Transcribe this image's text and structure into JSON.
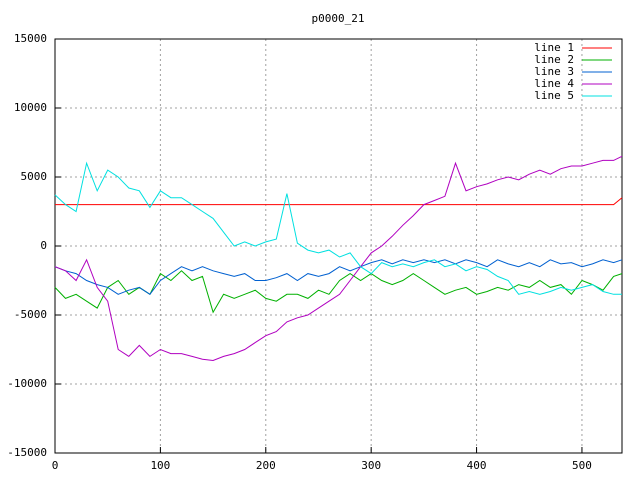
{
  "chart_data": {
    "type": "line",
    "title": "p0000_21",
    "x": [
      0,
      10,
      20,
      30,
      40,
      50,
      60,
      70,
      80,
      90,
      100,
      110,
      120,
      130,
      140,
      150,
      160,
      170,
      180,
      190,
      200,
      210,
      220,
      230,
      240,
      250,
      260,
      270,
      280,
      290,
      300,
      310,
      320,
      330,
      340,
      350,
      360,
      370,
      380,
      390,
      400,
      410,
      420,
      430,
      440,
      450,
      460,
      470,
      480,
      490,
      500,
      510,
      520,
      530,
      538
    ],
    "series": [
      {
        "name": "line 1",
        "color": "#ff0000",
        "values": [
          3000,
          3000,
          3000,
          3000,
          3000,
          3000,
          3000,
          3000,
          3000,
          3000,
          3000,
          3000,
          3000,
          3000,
          3000,
          3000,
          3000,
          3000,
          3000,
          3000,
          3000,
          3000,
          3000,
          3000,
          3000,
          3000,
          3000,
          3000,
          3000,
          3000,
          3000,
          3000,
          3000,
          3000,
          3000,
          3000,
          3000,
          3000,
          3000,
          3000,
          3000,
          3000,
          3000,
          3000,
          3000,
          3000,
          3000,
          3000,
          3000,
          3000,
          3000,
          3000,
          3000,
          3000,
          3500
        ]
      },
      {
        "name": "line 2",
        "color": "#00b000",
        "values": [
          -3000,
          -3800,
          -3500,
          -4000,
          -4500,
          -3000,
          -2500,
          -3500,
          -3000,
          -3500,
          -2000,
          -2500,
          -1800,
          -2500,
          -2200,
          -4800,
          -3500,
          -3800,
          -3500,
          -3200,
          -3800,
          -4000,
          -3500,
          -3500,
          -3800,
          -3200,
          -3500,
          -2500,
          -2000,
          -2500,
          -2000,
          -2500,
          -2800,
          -2500,
          -2000,
          -2500,
          -3000,
          -3500,
          -3200,
          -3000,
          -3500,
          -3300,
          -3000,
          -3200,
          -2800,
          -3000,
          -2500,
          -3000,
          -2800,
          -3500,
          -2500,
          -2800,
          -3200,
          -2200,
          -2000
        ]
      },
      {
        "name": "line 3",
        "color": "#0060d0",
        "values": [
          -1500,
          -1800,
          -2000,
          -2500,
          -2800,
          -3000,
          -3500,
          -3200,
          -3000,
          -3500,
          -2500,
          -2000,
          -1500,
          -1800,
          -1500,
          -1800,
          -2000,
          -2200,
          -2000,
          -2500,
          -2500,
          -2300,
          -2000,
          -2500,
          -2000,
          -2200,
          -2000,
          -1500,
          -1800,
          -1500,
          -1200,
          -1000,
          -1300,
          -1000,
          -1200,
          -1000,
          -1200,
          -1000,
          -1300,
          -1000,
          -1200,
          -1500,
          -1000,
          -1300,
          -1500,
          -1200,
          -1500,
          -1000,
          -1300,
          -1200,
          -1500,
          -1300,
          -1000,
          -1200,
          -1000
        ]
      },
      {
        "name": "line 4",
        "color": "#b000c0",
        "values": [
          -1500,
          -1800,
          -2500,
          -1000,
          -3000,
          -4000,
          -7500,
          -8000,
          -7200,
          -8000,
          -7500,
          -7800,
          -7800,
          -8000,
          -8200,
          -8300,
          -8000,
          -7800,
          -7500,
          -7000,
          -6500,
          -6200,
          -5500,
          -5200,
          -5000,
          -4500,
          -4000,
          -3500,
          -2500,
          -1500,
          -500,
          0,
          700,
          1500,
          2200,
          3000,
          3300,
          3600,
          6000,
          4000,
          4300,
          4500,
          4800,
          5000,
          4800,
          5200,
          5500,
          5200,
          5600,
          5800,
          5800,
          6000,
          6200,
          6200,
          6500
        ]
      },
      {
        "name": "line 5",
        "color": "#00e0e0",
        "values": [
          3700,
          3000,
          2500,
          6000,
          4000,
          5500,
          5000,
          4200,
          4000,
          2800,
          4000,
          3500,
          3500,
          3000,
          2500,
          2000,
          1000,
          0,
          300,
          0,
          300,
          500,
          3800,
          200,
          -300,
          -500,
          -300,
          -800,
          -500,
          -1500,
          -2000,
          -1200,
          -1500,
          -1300,
          -1500,
          -1200,
          -1000,
          -1500,
          -1300,
          -1800,
          -1500,
          -1700,
          -2200,
          -2500,
          -3500,
          -3300,
          -3500,
          -3300,
          -3000,
          -3200,
          -3000,
          -2800,
          -3300,
          -3500,
          -3500
        ]
      }
    ],
    "xlim": [
      0,
      538
    ],
    "ylim": [
      -15000,
      15000
    ],
    "xticks": [
      0,
      100,
      200,
      300,
      400,
      500
    ],
    "yticks": [
      -15000,
      -10000,
      -5000,
      0,
      5000,
      10000,
      15000
    ],
    "grid": true,
    "legend": "top-right"
  }
}
